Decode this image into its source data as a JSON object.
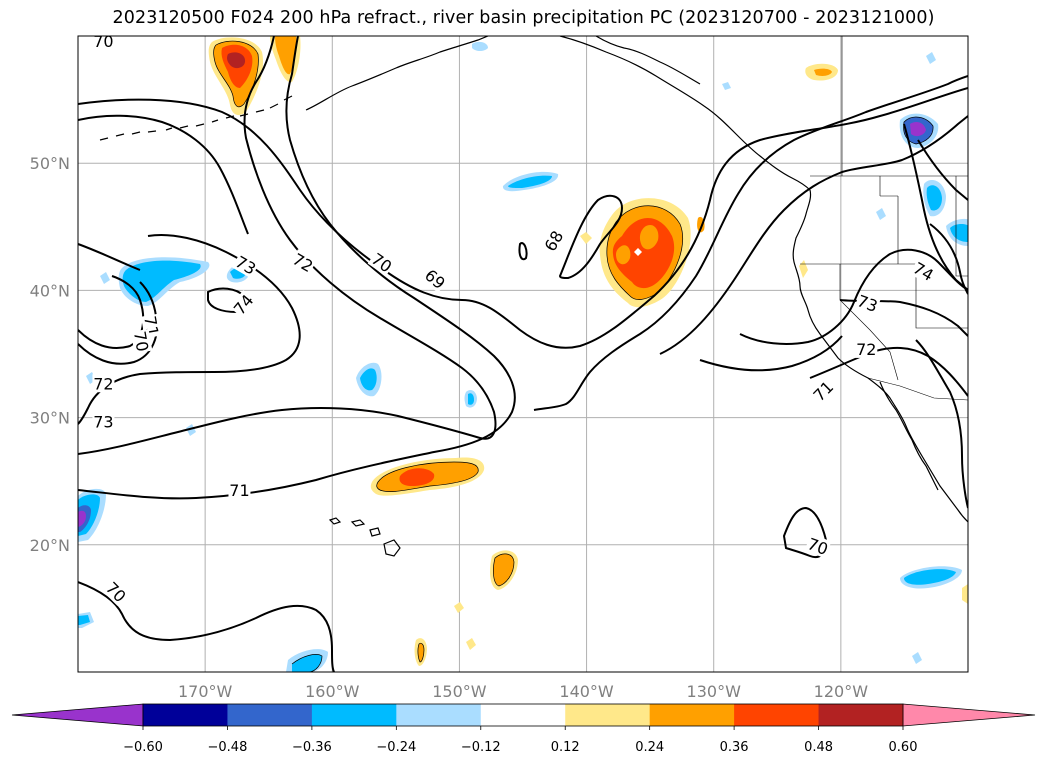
{
  "title": "2023120500 F024 200 hPa refract., river basin precipitation PC (2023120700 - 2023121000)",
  "map": {
    "lon_range": [
      -180,
      -110
    ],
    "lat_range": [
      10,
      60
    ],
    "gridlines": true,
    "xticks": [
      {
        "lon": -170,
        "label": "170°W"
      },
      {
        "lon": -160,
        "label": "160°W"
      },
      {
        "lon": -150,
        "label": "150°W"
      },
      {
        "lon": -140,
        "label": "140°W"
      },
      {
        "lon": -130,
        "label": "130°W"
      },
      {
        "lon": -120,
        "label": "120°W"
      }
    ],
    "yticks": [
      {
        "lat": 20,
        "label": "20°N"
      },
      {
        "lat": 30,
        "label": "30°N"
      },
      {
        "lat": 40,
        "label": "40°N"
      },
      {
        "lat": 50,
        "label": "50°N"
      }
    ]
  },
  "contour_labels": [
    {
      "text": "70",
      "lon": -178,
      "lat": 59.6,
      "rot": 0
    },
    {
      "text": "73",
      "lon": -166.8,
      "lat": 42.0,
      "rot": 30
    },
    {
      "text": "72",
      "lon": -162.3,
      "lat": 42.2,
      "rot": 30
    },
    {
      "text": "70",
      "lon": -156.1,
      "lat": 42.2,
      "rot": 35
    },
    {
      "text": "69",
      "lon": -151.9,
      "lat": 40.9,
      "rot": 40
    },
    {
      "text": "68",
      "lon": -142.6,
      "lat": 43.9,
      "rot": -60
    },
    {
      "text": "74",
      "lon": -167.0,
      "lat": 38.9,
      "rot": -50
    },
    {
      "text": "71",
      "lon": -174.2,
      "lat": 37.2,
      "rot": 80
    },
    {
      "text": "70",
      "lon": -175.0,
      "lat": 36.0,
      "rot": 80
    },
    {
      "text": "72",
      "lon": -178.0,
      "lat": 32.7,
      "rot": 0
    },
    {
      "text": "73",
      "lon": -178.0,
      "lat": 29.7,
      "rot": 0
    },
    {
      "text": "71",
      "lon": -167.3,
      "lat": 24.3,
      "rot": 0
    },
    {
      "text": "70",
      "lon": -177.0,
      "lat": 16.3,
      "rot": 45
    },
    {
      "text": "73",
      "lon": -117.9,
      "lat": 39.0,
      "rot": 20
    },
    {
      "text": "72",
      "lon": -118.0,
      "lat": 35.4,
      "rot": 0
    },
    {
      "text": "71",
      "lon": -121.4,
      "lat": 32.1,
      "rot": -45
    },
    {
      "text": "74",
      "lon": -113.5,
      "lat": 41.5,
      "rot": 30
    },
    {
      "text": "70",
      "lon": -121.8,
      "lat": 19.9,
      "rot": 20
    }
  ],
  "colorbar": {
    "bounds": [
      "-0.60",
      "-0.48",
      "-0.36",
      "-0.24",
      "-0.12",
      "0.12",
      "0.24",
      "0.36",
      "0.48",
      "0.60"
    ],
    "under_color": "#9933cc",
    "over_color": "#ff88aa",
    "colors": [
      "#000099",
      "#3366cc",
      "#00bbff",
      "#aaddff",
      "#ffffff",
      "#ffe88a",
      "#ffa000",
      "#ff4400",
      "#b22222"
    ],
    "extend": "both"
  },
  "colors": {
    "ocean": "#ffffff",
    "grid": "#b0b0b0",
    "contour": "#000000",
    "tick_label": "#808080"
  }
}
